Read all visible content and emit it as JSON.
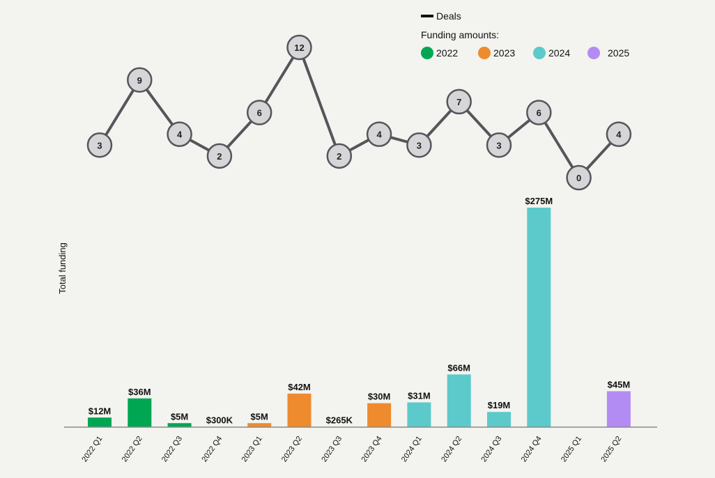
{
  "chart_data": {
    "type": "bar",
    "title": "",
    "xlabel": "",
    "ylabel": "Total funding",
    "categories": [
      "2022 Q1",
      "2022 Q2",
      "2022 Q3",
      "2022 Q4",
      "2023 Q1",
      "2023 Q2",
      "2023 Q3",
      "2023 Q4",
      "2024 Q1",
      "2024 Q2",
      "2024 Q3",
      "2024 Q4",
      "2025 Q1",
      "2025 Q2"
    ],
    "years": [
      "2022",
      "2022",
      "2022",
      "2022",
      "2023",
      "2023",
      "2023",
      "2023",
      "2024",
      "2024",
      "2024",
      "2024",
      "2025",
      "2025"
    ],
    "funding_musd": [
      12,
      36,
      5,
      0.3,
      5,
      42,
      0.265,
      30,
      31,
      66,
      19,
      275,
      null,
      45
    ],
    "funding_labels": [
      "$12M",
      "$36M",
      "$5M",
      "$300K",
      "$5M",
      "$42M",
      "$265K",
      "$30M",
      "$31M",
      "$66M",
      "$19M",
      "$275M",
      "",
      "$45M"
    ],
    "deals": [
      3,
      9,
      4,
      2,
      6,
      12,
      2,
      4,
      3,
      7,
      3,
      6,
      0,
      4
    ],
    "deals_series_name": "Deals",
    "legend": {
      "deals_label": "Deals",
      "funding_title": "Funding amounts:",
      "placement": "top-right",
      "years": [
        {
          "label": "2022",
          "color": "#00a651"
        },
        {
          "label": "2023",
          "color": "#ee8b2e"
        },
        {
          "label": "2024",
          "color": "#5ccaca"
        },
        {
          "label": "2025",
          "color": "#b28cf3"
        }
      ]
    },
    "ylim": [
      0,
      275
    ],
    "deals_ylim": [
      0,
      12
    ],
    "grid": false
  }
}
